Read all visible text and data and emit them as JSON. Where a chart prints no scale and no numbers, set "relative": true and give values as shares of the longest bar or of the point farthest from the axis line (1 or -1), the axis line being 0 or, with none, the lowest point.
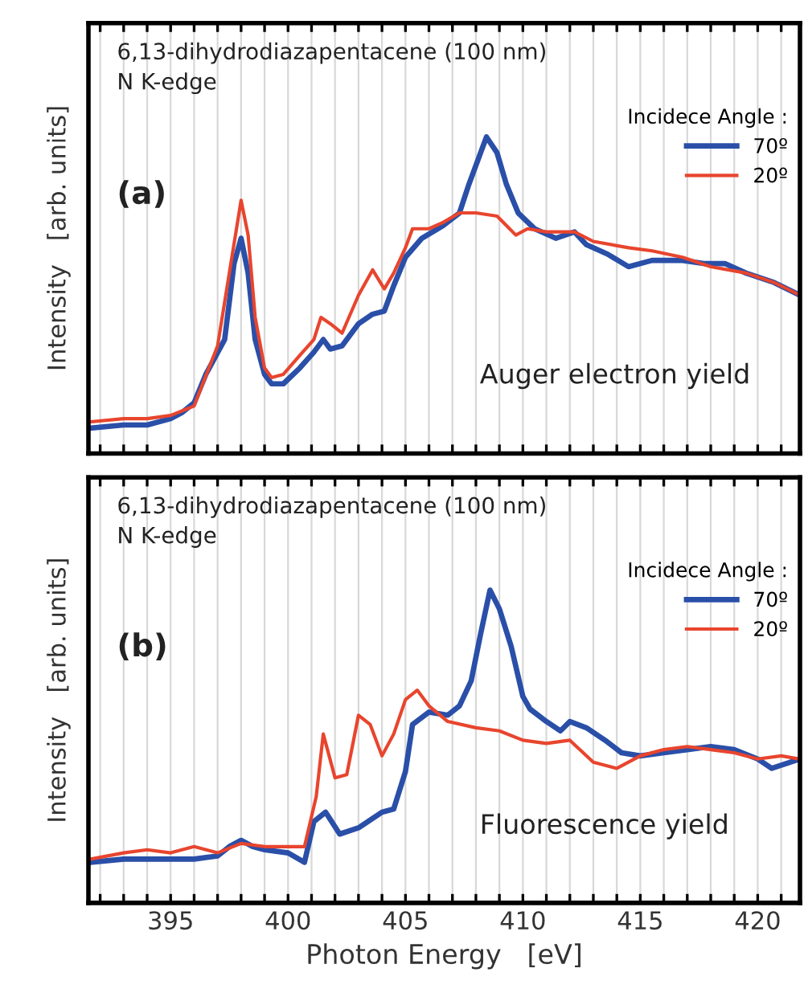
{
  "chart_data": [
    {
      "type": "line",
      "relative": true,
      "ylabel": "Intensity   [arb. units]",
      "legend_title": "Incidece Angle :",
      "legend": "top right",
      "grid": "x",
      "tick_labels": false,
      "line_style": "solid",
      "annotations": [
        "6,13-dihydrodiazapentacene (100 nm)",
        "N K-edge",
        "(a)",
        "Auger electron yield"
      ],
      "xlim": [
        391.5,
        421.8
      ],
      "xticks": [
        {
          "value": 392,
          "label": null
        },
        {
          "value": 393,
          "label": null
        },
        {
          "value": 394,
          "label": null
        },
        {
          "value": 395,
          "label": null
        },
        {
          "value": 396,
          "label": null
        },
        {
          "value": 397,
          "label": null
        },
        {
          "value": 398,
          "label": null
        },
        {
          "value": 399,
          "label": null
        },
        {
          "value": 400,
          "label": null
        },
        {
          "value": 401,
          "label": null
        },
        {
          "value": 402,
          "label": null
        },
        {
          "value": 403,
          "label": null
        },
        {
          "value": 404,
          "label": null
        },
        {
          "value": 405,
          "label": null
        },
        {
          "value": 406,
          "label": null
        },
        {
          "value": 407,
          "label": null
        },
        {
          "value": 408,
          "label": null
        },
        {
          "value": 409,
          "label": null
        },
        {
          "value": 410,
          "label": null
        },
        {
          "value": 411,
          "label": null
        },
        {
          "value": 412,
          "label": null
        },
        {
          "value": 413,
          "label": null
        },
        {
          "value": 414,
          "label": null
        },
        {
          "value": 415,
          "label": null
        },
        {
          "value": 416,
          "label": null
        },
        {
          "value": 417,
          "label": null
        },
        {
          "value": 418,
          "label": null
        },
        {
          "value": 419,
          "label": null
        },
        {
          "value": 420,
          "label": null
        },
        {
          "value": 421,
          "label": null
        }
      ],
      "series": [
        {
          "name": "70º",
          "color": "#2a4fa8",
          "x": [
            391.6,
            393,
            394,
            395,
            395.5,
            396,
            396.5,
            397.3,
            397.7,
            398.0,
            398.3,
            398.6,
            399.0,
            399.3,
            399.8,
            400.5,
            401.1,
            401.5,
            401.8,
            402.3,
            403.0,
            403.6,
            404.1,
            404.5,
            405.0,
            405.7,
            406.6,
            407.3,
            407.7,
            408.2,
            408.45,
            408.9,
            409.3,
            409.8,
            410.5,
            411.4,
            412.2,
            412.7,
            413.6,
            414.5,
            415.5,
            416.8,
            417.7,
            418.6,
            419.5,
            420.7,
            421.8
          ],
          "values": [
            0.08,
            0.09,
            0.09,
            0.11,
            0.13,
            0.16,
            0.25,
            0.36,
            0.6,
            0.68,
            0.57,
            0.36,
            0.25,
            0.22,
            0.22,
            0.27,
            0.32,
            0.36,
            0.33,
            0.34,
            0.41,
            0.44,
            0.45,
            0.53,
            0.62,
            0.68,
            0.72,
            0.76,
            0.85,
            0.95,
            1.0,
            0.95,
            0.85,
            0.76,
            0.71,
            0.68,
            0.7,
            0.66,
            0.63,
            0.59,
            0.61,
            0.61,
            0.6,
            0.6,
            0.57,
            0.54,
            0.5
          ]
        },
        {
          "name": "20º",
          "color": "#e8452e",
          "x": [
            391.6,
            393,
            394,
            395,
            396,
            397,
            397.5,
            398.0,
            398.3,
            398.6,
            399.0,
            399.3,
            399.8,
            400.5,
            401.1,
            401.4,
            401.8,
            402.3,
            403.0,
            403.6,
            404.1,
            404.5,
            405.0,
            405.3,
            406.0,
            406.6,
            407.3,
            408.0,
            408.9,
            409.3,
            409.7,
            410.2,
            411.0,
            412.2,
            413.0,
            414.5,
            415.5,
            416.8,
            418.0,
            419.5,
            420.7,
            421.8
          ],
          "values": [
            0.1,
            0.11,
            0.11,
            0.12,
            0.15,
            0.34,
            0.57,
            0.8,
            0.69,
            0.43,
            0.27,
            0.24,
            0.25,
            0.31,
            0.36,
            0.43,
            0.41,
            0.38,
            0.5,
            0.58,
            0.52,
            0.57,
            0.65,
            0.71,
            0.71,
            0.73,
            0.76,
            0.76,
            0.75,
            0.72,
            0.69,
            0.71,
            0.7,
            0.7,
            0.67,
            0.65,
            0.64,
            0.62,
            0.59,
            0.57,
            0.54,
            0.5
          ]
        }
      ]
    },
    {
      "type": "line",
      "relative": true,
      "ylabel": "Intensity   [arb. units]",
      "xlabel": "Photon Energy   [eV]",
      "legend_title": "Incidece Angle :",
      "legend": "top right",
      "grid": "x",
      "tick_labels": "x",
      "line_style": "solid",
      "annotations": [
        "6,13-dihydrodiazapentacene (100 nm)",
        "N K-edge",
        "(b)",
        "Fluorescence yield"
      ],
      "xlim": [
        391.5,
        421.8
      ],
      "xticks": [
        {
          "value": 392,
          "label": null
        },
        {
          "value": 393,
          "label": null
        },
        {
          "value": 394,
          "label": null
        },
        395,
        {
          "value": 396,
          "label": null
        },
        {
          "value": 397,
          "label": null
        },
        {
          "value": 398,
          "label": null
        },
        {
          "value": 399,
          "label": null
        },
        400,
        {
          "value": 401,
          "label": null
        },
        {
          "value": 402,
          "label": null
        },
        {
          "value": 403,
          "label": null
        },
        {
          "value": 404,
          "label": null
        },
        405,
        {
          "value": 406,
          "label": null
        },
        {
          "value": 407,
          "label": null
        },
        {
          "value": 408,
          "label": null
        },
        {
          "value": 409,
          "label": null
        },
        410,
        {
          "value": 411,
          "label": null
        },
        {
          "value": 412,
          "label": null
        },
        {
          "value": 413,
          "label": null
        },
        {
          "value": 414,
          "label": null
        },
        415,
        {
          "value": 416,
          "label": null
        },
        {
          "value": 417,
          "label": null
        },
        {
          "value": 418,
          "label": null
        },
        {
          "value": 419,
          "label": null
        },
        420,
        {
          "value": 421,
          "label": null
        }
      ],
      "series": [
        {
          "name": "70º",
          "color": "#2a4fa8",
          "x": [
            391.6,
            393,
            394,
            395,
            396,
            397,
            397.5,
            398,
            398.5,
            399,
            400,
            400.7,
            401.1,
            401.6,
            402.2,
            403,
            404,
            404.5,
            405,
            405.3,
            406,
            406.8,
            407.3,
            407.8,
            408.2,
            408.6,
            409,
            409.5,
            410,
            410.3,
            411,
            411.6,
            412,
            412.7,
            413.5,
            414.2,
            415,
            416,
            417,
            418,
            419,
            420,
            420.6,
            421.4,
            421.8
          ],
          "values": [
            0.13,
            0.14,
            0.14,
            0.14,
            0.14,
            0.15,
            0.18,
            0.2,
            0.18,
            0.17,
            0.16,
            0.13,
            0.26,
            0.29,
            0.22,
            0.24,
            0.29,
            0.3,
            0.42,
            0.57,
            0.61,
            0.6,
            0.63,
            0.71,
            0.86,
            1.0,
            0.94,
            0.82,
            0.66,
            0.62,
            0.58,
            0.55,
            0.58,
            0.56,
            0.52,
            0.48,
            0.47,
            0.48,
            0.49,
            0.5,
            0.49,
            0.46,
            0.43,
            0.45,
            0.46
          ]
        },
        {
          "name": "20º",
          "color": "#e8452e",
          "x": [
            391.6,
            393,
            394,
            395,
            396,
            397,
            398,
            399,
            400,
            400.7,
            401.2,
            401.5,
            402,
            402.5,
            403,
            403.5,
            404,
            404.5,
            405,
            405.5,
            406,
            406.8,
            408,
            409,
            410,
            411,
            412,
            413,
            414,
            415,
            416,
            417,
            418,
            419,
            420,
            421,
            421.8
          ],
          "values": [
            0.14,
            0.16,
            0.17,
            0.16,
            0.18,
            0.16,
            0.19,
            0.18,
            0.18,
            0.18,
            0.34,
            0.54,
            0.4,
            0.41,
            0.6,
            0.57,
            0.47,
            0.54,
            0.65,
            0.68,
            0.63,
            0.58,
            0.56,
            0.55,
            0.52,
            0.51,
            0.52,
            0.45,
            0.43,
            0.47,
            0.49,
            0.5,
            0.49,
            0.48,
            0.46,
            0.47,
            0.46
          ]
        }
      ]
    }
  ]
}
